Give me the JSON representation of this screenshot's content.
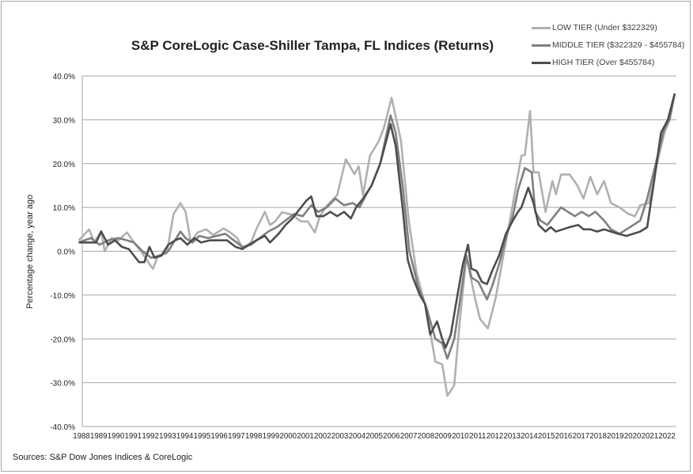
{
  "chart_data": {
    "type": "line",
    "title": "S&P CoreLogic Case-Shiller Tampa, FL Indices (Returns)",
    "xlabel": "",
    "ylabel": "Percentage change, year ago",
    "ylim": [
      -40,
      40
    ],
    "yticks": [
      "-40.0%",
      "-30.0%",
      "-20.0%",
      "-10.0%",
      "0.0%",
      "10.0%",
      "20.0%",
      "30.0%",
      "40.0%"
    ],
    "xticks": [
      "1988",
      "1989",
      "1990",
      "1991",
      "1992",
      "1993",
      "1994",
      "1995",
      "1996",
      "1997",
      "1998",
      "1999",
      "2000",
      "2001",
      "2002",
      "2003",
      "2004",
      "2005",
      "2006",
      "2007",
      "2008",
      "2009",
      "2010",
      "2011",
      "2012",
      "2013",
      "2014",
      "2015",
      "2016",
      "2017",
      "2018",
      "2019",
      "2020",
      "2021",
      "2022"
    ],
    "xlim": [
      1987.5,
      2022.5
    ],
    "grid": true,
    "legend_position": "top-right",
    "source": "Sources: S&P Dow Jones Indices & CoreLogic",
    "series": [
      {
        "name": "LOW TIER (Under $322329)",
        "color": "#b0b0b0",
        "points": [
          [
            1987.8,
            2.5
          ],
          [
            1988.4,
            5
          ],
          [
            1988.7,
            2
          ],
          [
            1989.1,
            4.6
          ],
          [
            1989.3,
            0
          ],
          [
            1989.7,
            3
          ],
          [
            1990.1,
            2.5
          ],
          [
            1990.6,
            4.3
          ],
          [
            1991.0,
            2
          ],
          [
            1991.5,
            -0.5
          ],
          [
            1992.0,
            -3.5
          ],
          [
            1992.1,
            -4
          ],
          [
            1992.4,
            -1
          ],
          [
            1992.9,
            -0.5
          ],
          [
            1993.3,
            8.5
          ],
          [
            1993.7,
            11
          ],
          [
            1994.0,
            9
          ],
          [
            1994.3,
            2
          ],
          [
            1994.7,
            4.3
          ],
          [
            1995.2,
            5
          ],
          [
            1995.6,
            3.7
          ],
          [
            1996.2,
            5.2
          ],
          [
            1996.6,
            4.3
          ],
          [
            1997.0,
            3
          ],
          [
            1997.3,
            0.7
          ],
          [
            1997.8,
            2
          ],
          [
            1998.1,
            5
          ],
          [
            1998.6,
            9
          ],
          [
            1998.9,
            6
          ],
          [
            1999.2,
            6.8
          ],
          [
            1999.6,
            8.9
          ],
          [
            2000.2,
            8.3
          ],
          [
            2000.7,
            6.8
          ],
          [
            2001.1,
            6.8
          ],
          [
            2001.5,
            4.3
          ],
          [
            2001.8,
            8
          ],
          [
            2002.2,
            10.4
          ],
          [
            2002.8,
            12.8
          ],
          [
            2003.3,
            21
          ],
          [
            2003.8,
            17.6
          ],
          [
            2004.05,
            19.4
          ],
          [
            2004.3,
            12.8
          ],
          [
            2004.7,
            21.8
          ],
          [
            2005.2,
            25
          ],
          [
            2005.5,
            28
          ],
          [
            2005.96,
            35
          ],
          [
            2006.5,
            25.4
          ],
          [
            2006.95,
            7.3
          ],
          [
            2007.4,
            -4.7
          ],
          [
            2008.0,
            -13.7
          ],
          [
            2008.5,
            -25.2
          ],
          [
            2008.9,
            -25.8
          ],
          [
            2009.2,
            -33
          ],
          [
            2009.6,
            -30.6
          ],
          [
            2009.9,
            -16.7
          ],
          [
            2010.3,
            -1.1
          ],
          [
            2010.8,
            -10.7
          ],
          [
            2011.1,
            -15.5
          ],
          [
            2011.55,
            -17.6
          ],
          [
            2012.0,
            -10.7
          ],
          [
            2012.5,
            0.1
          ],
          [
            2012.9,
            8.6
          ],
          [
            2013.5,
            21.8
          ],
          [
            2013.7,
            22
          ],
          [
            2014.0,
            32
          ],
          [
            2014.2,
            18
          ],
          [
            2014.5,
            18
          ],
          [
            2014.9,
            9
          ],
          [
            2015.3,
            16
          ],
          [
            2015.5,
            13
          ],
          [
            2015.8,
            17.5
          ],
          [
            2016.3,
            17.5
          ],
          [
            2016.75,
            15
          ],
          [
            2017.1,
            12
          ],
          [
            2017.5,
            17
          ],
          [
            2017.9,
            13
          ],
          [
            2018.3,
            16
          ],
          [
            2018.7,
            11
          ],
          [
            2019.2,
            10
          ],
          [
            2019.7,
            8.5
          ],
          [
            2020.1,
            8
          ],
          [
            2020.4,
            10.5
          ],
          [
            2020.9,
            11
          ],
          [
            2021.35,
            19.5
          ],
          [
            2021.8,
            27
          ],
          [
            2022.1,
            30
          ],
          [
            2022.4,
            36
          ]
        ]
      },
      {
        "name": "MIDDLE TIER ($322329 - $455784)",
        "color": "#7f7f7f",
        "points": [
          [
            1987.8,
            2
          ],
          [
            1988.5,
            3
          ],
          [
            1989.0,
            1.5
          ],
          [
            1989.5,
            2.5
          ],
          [
            1990.1,
            3
          ],
          [
            1990.6,
            2.5
          ],
          [
            1991.0,
            2
          ],
          [
            1991.5,
            0
          ],
          [
            1992.0,
            -1.5
          ],
          [
            1992.5,
            -1
          ],
          [
            1993.0,
            0
          ],
          [
            1993.3,
            2
          ],
          [
            1993.7,
            4.5
          ],
          [
            1994.0,
            3
          ],
          [
            1994.4,
            2
          ],
          [
            1994.8,
            3.5
          ],
          [
            1995.3,
            3
          ],
          [
            1995.8,
            3.5
          ],
          [
            1996.3,
            4
          ],
          [
            1996.8,
            2.5
          ],
          [
            1997.3,
            1
          ],
          [
            1997.8,
            1.5
          ],
          [
            1998.3,
            3
          ],
          [
            1998.8,
            4.5
          ],
          [
            1999.3,
            5.5
          ],
          [
            1999.8,
            7
          ],
          [
            2000.3,
            8.5
          ],
          [
            2000.8,
            8
          ],
          [
            2001.3,
            10.5
          ],
          [
            2001.7,
            9
          ],
          [
            2002.2,
            10
          ],
          [
            2002.7,
            12
          ],
          [
            2003.2,
            10.5
          ],
          [
            2003.7,
            11
          ],
          [
            2004.1,
            10
          ],
          [
            2004.5,
            13
          ],
          [
            2004.8,
            15
          ],
          [
            2005.3,
            20
          ],
          [
            2005.9,
            31
          ],
          [
            2006.2,
            27
          ],
          [
            2006.6,
            15
          ],
          [
            2007.0,
            0
          ],
          [
            2007.5,
            -8
          ],
          [
            2008.0,
            -13
          ],
          [
            2008.5,
            -20
          ],
          [
            2008.9,
            -21
          ],
          [
            2009.2,
            -24.5
          ],
          [
            2009.6,
            -20
          ],
          [
            2009.9,
            -12
          ],
          [
            2010.3,
            -1
          ],
          [
            2010.6,
            -6
          ],
          [
            2011.0,
            -7
          ],
          [
            2011.5,
            -11
          ],
          [
            2011.8,
            -8
          ],
          [
            2012.2,
            -3
          ],
          [
            2012.6,
            3
          ],
          [
            2013.0,
            8
          ],
          [
            2013.3,
            14
          ],
          [
            2013.7,
            19
          ],
          [
            2014.1,
            18
          ],
          [
            2014.3,
            9
          ],
          [
            2014.6,
            7
          ],
          [
            2015.0,
            6
          ],
          [
            2015.4,
            8
          ],
          [
            2015.8,
            10
          ],
          [
            2016.2,
            9
          ],
          [
            2016.6,
            8
          ],
          [
            2017.0,
            9
          ],
          [
            2017.4,
            8
          ],
          [
            2017.8,
            9
          ],
          [
            2018.3,
            7
          ],
          [
            2018.7,
            5
          ],
          [
            2019.2,
            4
          ],
          [
            2019.6,
            5
          ],
          [
            2020.0,
            6
          ],
          [
            2020.4,
            7
          ],
          [
            2020.8,
            12
          ],
          [
            2021.3,
            20
          ],
          [
            2021.8,
            28
          ],
          [
            2022.1,
            30
          ],
          [
            2022.4,
            36
          ]
        ]
      },
      {
        "name": "HIGH TIER (Over $455784)",
        "color": "#4d4d4d",
        "points": [
          [
            1987.8,
            2
          ],
          [
            1988.3,
            2
          ],
          [
            1988.8,
            2
          ],
          [
            1989.1,
            4.5
          ],
          [
            1989.5,
            1.5
          ],
          [
            1989.9,
            2.5
          ],
          [
            1990.3,
            1
          ],
          [
            1990.7,
            0.5
          ],
          [
            1991.0,
            -1
          ],
          [
            1991.3,
            -2.5
          ],
          [
            1991.6,
            -2.5
          ],
          [
            1991.9,
            1
          ],
          [
            1992.2,
            -1.5
          ],
          [
            1992.6,
            -1
          ],
          [
            1993.0,
            1.5
          ],
          [
            1993.4,
            2.5
          ],
          [
            1993.7,
            3
          ],
          [
            1994.1,
            1.5
          ],
          [
            1994.5,
            3
          ],
          [
            1994.9,
            2
          ],
          [
            1995.4,
            2.5
          ],
          [
            1995.9,
            2.5
          ],
          [
            1996.4,
            2.5
          ],
          [
            1996.9,
            1
          ],
          [
            1997.3,
            0.5
          ],
          [
            1997.7,
            1.5
          ],
          [
            1998.1,
            2.5
          ],
          [
            1998.6,
            3.5
          ],
          [
            1998.9,
            2
          ],
          [
            1999.4,
            4
          ],
          [
            1999.8,
            6
          ],
          [
            2000.2,
            7.5
          ],
          [
            2000.7,
            10
          ],
          [
            2001.0,
            11.5
          ],
          [
            2001.3,
            12.5
          ],
          [
            2001.6,
            8
          ],
          [
            2002.0,
            8
          ],
          [
            2002.4,
            9
          ],
          [
            2002.8,
            8
          ],
          [
            2003.2,
            9
          ],
          [
            2003.6,
            7.5
          ],
          [
            2003.9,
            10
          ],
          [
            2004.3,
            12
          ],
          [
            2004.8,
            15
          ],
          [
            2005.3,
            20
          ],
          [
            2005.9,
            29
          ],
          [
            2006.2,
            24
          ],
          [
            2006.6,
            10
          ],
          [
            2006.9,
            -2
          ],
          [
            2007.2,
            -6
          ],
          [
            2007.6,
            -10
          ],
          [
            2007.9,
            -12
          ],
          [
            2008.2,
            -19
          ],
          [
            2008.6,
            -16
          ],
          [
            2008.9,
            -20
          ],
          [
            2009.1,
            -22
          ],
          [
            2009.4,
            -19
          ],
          [
            2009.7,
            -12
          ],
          [
            2010.1,
            -3
          ],
          [
            2010.4,
            1.5
          ],
          [
            2010.6,
            -4
          ],
          [
            2010.9,
            -4.5
          ],
          [
            2011.2,
            -7
          ],
          [
            2011.5,
            -7.5
          ],
          [
            2011.8,
            -4.5
          ],
          [
            2012.2,
            -1
          ],
          [
            2012.6,
            4
          ],
          [
            2013.0,
            7
          ],
          [
            2013.3,
            9
          ],
          [
            2013.5,
            10
          ],
          [
            2013.9,
            14.5
          ],
          [
            2014.2,
            11
          ],
          [
            2014.5,
            6
          ],
          [
            2014.9,
            4.5
          ],
          [
            2015.2,
            5.5
          ],
          [
            2015.5,
            4.5
          ],
          [
            2015.9,
            5
          ],
          [
            2016.3,
            5.5
          ],
          [
            2016.8,
            6
          ],
          [
            2017.1,
            5
          ],
          [
            2017.5,
            5
          ],
          [
            2017.9,
            4.5
          ],
          [
            2018.3,
            5
          ],
          [
            2018.7,
            4.5
          ],
          [
            2019.1,
            4
          ],
          [
            2019.6,
            3.5
          ],
          [
            2020.0,
            4
          ],
          [
            2020.4,
            4.5
          ],
          [
            2020.8,
            5.5
          ],
          [
            2021.2,
            16
          ],
          [
            2021.6,
            27
          ],
          [
            2022.0,
            30
          ],
          [
            2022.4,
            36
          ]
        ]
      }
    ]
  }
}
